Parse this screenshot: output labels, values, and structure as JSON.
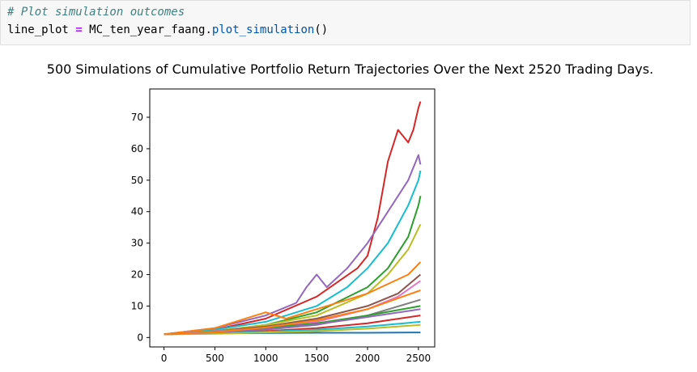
{
  "code": {
    "comment": "# Plot simulation outcomes",
    "var_name": "line_plot",
    "op": "=",
    "object": "MC_ten_year_faang",
    "dot": ".",
    "method": "plot_simulation",
    "parens": "()"
  },
  "chart_data": {
    "type": "line",
    "title": "500 Simulations of Cumulative Portfolio Return Trajectories Over the Next 2520 Trading Days.",
    "xlabel": "",
    "ylabel": "",
    "xlim": [
      -140,
      2660
    ],
    "ylim": [
      -3,
      79
    ],
    "xticks": [
      0,
      500,
      1000,
      1500,
      2000,
      2500
    ],
    "yticks": [
      0,
      10,
      20,
      30,
      40,
      50,
      60,
      70
    ],
    "grid": false,
    "legend": false,
    "num_simulations": 500,
    "trading_days": 2520,
    "series": [
      {
        "color": "#d62728",
        "x": [
          0,
          500,
          1000,
          1500,
          1900,
          2000,
          2100,
          2200,
          2300,
          2400,
          2450,
          2500,
          2520
        ],
        "values": [
          1,
          2.5,
          6,
          13,
          22,
          26,
          38,
          56,
          66,
          62,
          66,
          73,
          75
        ]
      },
      {
        "color": "#9467bd",
        "x": [
          0,
          500,
          1000,
          1300,
          1400,
          1500,
          1600,
          1800,
          2000,
          2200,
          2400,
          2500,
          2520
        ],
        "values": [
          1,
          3,
          7,
          11,
          16,
          20,
          16,
          22,
          30,
          40,
          50,
          58,
          55
        ]
      },
      {
        "color": "#17becf",
        "x": [
          0,
          500,
          1000,
          1500,
          1800,
          2000,
          2200,
          2400,
          2500,
          2520
        ],
        "values": [
          1,
          2.5,
          5,
          10,
          16,
          22,
          30,
          42,
          50,
          53
        ]
      },
      {
        "color": "#2ca02c",
        "x": [
          0,
          500,
          1000,
          1500,
          2000,
          2200,
          2400,
          2500,
          2520
        ],
        "values": [
          1,
          2,
          4,
          8,
          16,
          22,
          32,
          42,
          45
        ]
      },
      {
        "color": "#bcbd22",
        "x": [
          0,
          500,
          1000,
          1500,
          2000,
          2200,
          2400,
          2520
        ],
        "values": [
          1,
          2,
          4,
          7,
          14,
          20,
          28,
          36
        ]
      },
      {
        "color": "#ff7f0e",
        "x": [
          0,
          500,
          900,
          1000,
          1200,
          1500,
          2000,
          2400,
          2520
        ],
        "values": [
          1,
          3,
          7,
          8,
          6,
          9,
          14,
          20,
          24
        ]
      },
      {
        "color": "#1f77b4",
        "x": [
          0,
          500,
          1000,
          1500,
          2000,
          2520
        ],
        "values": [
          1,
          1.3,
          1.4,
          1.5,
          1.5,
          1.6
        ]
      },
      {
        "color": "#8c564b",
        "x": [
          0,
          500,
          1000,
          1500,
          2000,
          2300,
          2520
        ],
        "values": [
          1,
          2,
          3.5,
          6,
          10,
          14,
          20
        ]
      },
      {
        "color": "#e377c2",
        "x": [
          0,
          500,
          1000,
          1500,
          2000,
          2300,
          2520
        ],
        "values": [
          1,
          2,
          3,
          5,
          9,
          13,
          18
        ]
      },
      {
        "color": "#7f7f7f",
        "x": [
          0,
          500,
          1000,
          1500,
          2000,
          2520
        ],
        "values": [
          1,
          1.5,
          2.5,
          4,
          7,
          12
        ]
      },
      {
        "color": "#2ca02c",
        "x": [
          0,
          500,
          1000,
          1500,
          2000,
          2520
        ],
        "values": [
          1,
          1.8,
          3,
          4.5,
          7,
          10
        ]
      },
      {
        "color": "#d62728",
        "x": [
          0,
          500,
          1000,
          1500,
          2000,
          2520
        ],
        "values": [
          1,
          1.4,
          2,
          3,
          4.5,
          7
        ]
      },
      {
        "color": "#17becf",
        "x": [
          0,
          500,
          1000,
          1500,
          2000,
          2520
        ],
        "values": [
          1,
          1.3,
          1.8,
          2.5,
          3.5,
          5
        ]
      },
      {
        "color": "#bcbd22",
        "x": [
          0,
          500,
          1000,
          1500,
          2000,
          2520
        ],
        "values": [
          1,
          1.2,
          1.6,
          2,
          2.8,
          4
        ]
      },
      {
        "color": "#9467bd",
        "x": [
          0,
          500,
          1000,
          1500,
          2000,
          2520
        ],
        "values": [
          1,
          1.6,
          2.6,
          4.2,
          6.5,
          9
        ]
      },
      {
        "color": "#ff7f0e",
        "x": [
          0,
          500,
          1000,
          1500,
          2000,
          2520
        ],
        "values": [
          1,
          1.7,
          3.2,
          5.5,
          9,
          15
        ]
      }
    ]
  }
}
